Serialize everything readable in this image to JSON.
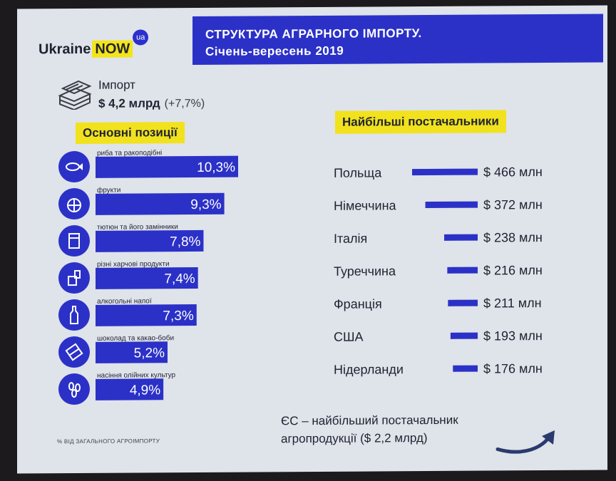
{
  "brand": {
    "name": "Ukraine",
    "accent": "NOW",
    "badge": "ua"
  },
  "title": {
    "line1": "СТРУКТУРА  АГРАРНОГО ІМПОРТУ.",
    "line2": "Січень-вересень 2019"
  },
  "import": {
    "label": "Імпорт",
    "value": "$ 4,2 млрд",
    "change": "(+7,7%)"
  },
  "colors": {
    "bar": "#2b31c7",
    "highlight": "#f1e21d",
    "icon_circle": "#2b31c7",
    "screen": "#dfe3ea"
  },
  "footnote": "% ВІД ЗАГАЛЬНОГО АГРОІМПОРТУ",
  "eu_note": {
    "line1": "ЄС – найбільший постачальник",
    "line2": "агропродукції ($ 2,2 млрд)"
  },
  "chart_data": [
    {
      "type": "bar",
      "title": "Основні позиції",
      "orientation": "horizontal",
      "categories": [
        "риба та ракоподібні",
        "фрукти",
        "тютюн та його замінники",
        "різні харчові продукти",
        "алкогольні напої",
        "шоколад та какао-боби",
        "насіння олійних культур"
      ],
      "values": [
        10.3,
        9.3,
        7.8,
        7.4,
        7.3,
        5.2,
        4.9
      ],
      "value_labels": [
        "10,3%",
        "9,3%",
        "7,8%",
        "7,4%",
        "7,3%",
        "5,2%",
        "4,9%"
      ],
      "icons": [
        "fish-icon",
        "orange-icon",
        "cigarette-pack-icon",
        "canned-food-icon",
        "bottle-icon",
        "chocolate-icon",
        "seeds-icon"
      ],
      "unit": "% ВІД ЗАГАЛЬНОГО АГРОІМПОРТУ"
    },
    {
      "type": "bar",
      "title": "Найбільші постачальники",
      "orientation": "horizontal",
      "categories": [
        "Польща",
        "Німеччина",
        "Італія",
        "Туреччина",
        "Франція",
        "США",
        "Нідерланди"
      ],
      "values": [
        466,
        372,
        238,
        216,
        211,
        193,
        176
      ],
      "value_labels": [
        "$ 466 млн",
        "$ 372 млн",
        "$ 238 млн",
        "$ 216 млн",
        "$ 211 млн",
        "$ 193 млн",
        "$ 176 млн"
      ],
      "unit": "$ млн"
    }
  ]
}
